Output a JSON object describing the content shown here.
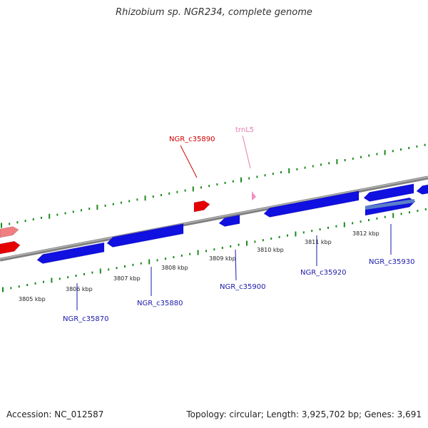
{
  "title": "Rhizobium sp. NGR234, complete genome",
  "footer": {
    "accession": "Accession: NC_012587",
    "summary": "Topology: circular; Length: 3,925,702 bp; Genes: 3,691"
  },
  "colors": {
    "forward_gene": "#e60000",
    "forward_gene_faded": "#f08080",
    "reverse_gene": "#1010e0",
    "reverse_gene_faded": "#5a7fc8",
    "trna": "#f090c0",
    "backbone": "#808080",
    "ticks": "#1a8a1a",
    "label_forward": "#d00000",
    "label_reverse": "#1a1aa8",
    "label_trna": "#e87ab0"
  },
  "kbp_labels": [
    "3805 kbp",
    "3806 kbp",
    "3807 kbp",
    "3808 kbp",
    "3809 kbp",
    "3810 kbp",
    "3811 kbp",
    "3812 kbp"
  ],
  "gene_labels": {
    "NGR_c35890": "NGR_c35890",
    "trnL5": "trnL5",
    "NGR_c35870": "NGR_c35870",
    "NGR_c35880": "NGR_c35880",
    "NGR_c35900": "NGR_c35900",
    "NGR_c35920": "NGR_c35920",
    "NGR_c35930": "NGR_c35930"
  }
}
